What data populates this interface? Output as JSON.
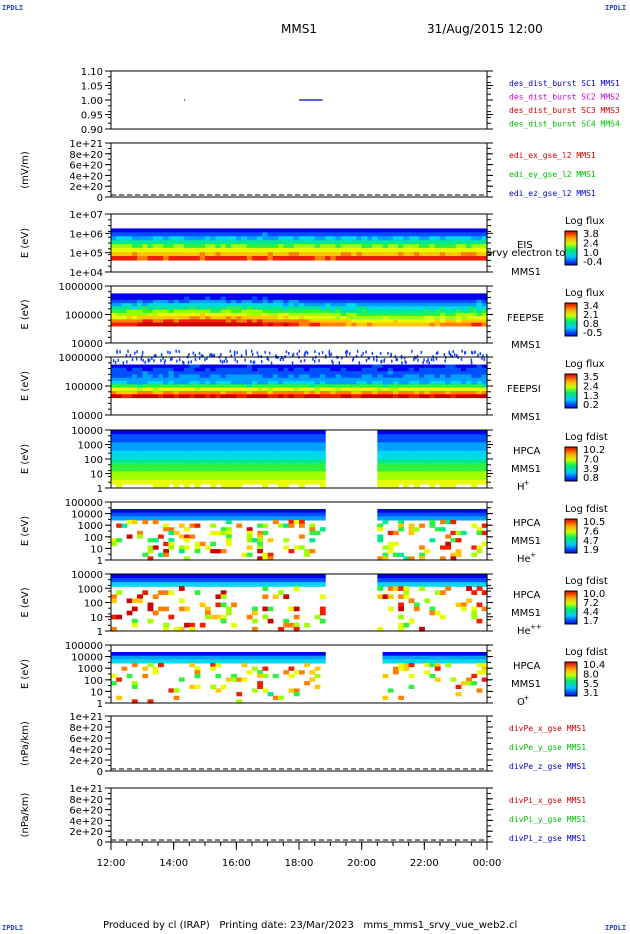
{
  "page": {
    "corner_label": "IPDLI",
    "spacecraft": "MMS1",
    "datetime": "31/Aug/2015 12:00",
    "footer": {
      "producer": "Produced by cl (IRAP)",
      "printing_date": "Printing date: 23/Mar/2023",
      "filename": "mms_mms1_srvy_vue_web2.cl"
    }
  },
  "chart_data": [
    {
      "id": "burst",
      "type": "line",
      "ylim": [
        0.9,
        1.1
      ],
      "yticks": [
        "1.10",
        "1.05",
        "1.00",
        "0.95",
        "0.90"
      ],
      "ytick_values": [
        1.1,
        1.05,
        1.0,
        0.95,
        0.9
      ],
      "ylabel": "",
      "legend": [
        {
          "text": "des_dist_burst SC1 MMS1",
          "color": "#0000cc"
        },
        {
          "text": "des_dist_burst SC2 MMS2",
          "color": "#cc00cc"
        },
        {
          "text": "des_dist_burst SC3 MMS3",
          "color": "#cc0000"
        },
        {
          "text": "des_dist_burst SC4 MMS4",
          "color": "#00bb00"
        }
      ],
      "segments": [
        {
          "x": [
            "14:20",
            "14:22"
          ],
          "y": 1.0,
          "color": "#0000cc"
        },
        {
          "x": [
            "18:00",
            "18:45"
          ],
          "y": 1.0,
          "color": "#0000cc"
        }
      ]
    },
    {
      "id": "edi",
      "type": "line",
      "ylim": [
        0,
        1e+21
      ],
      "yticks": [
        "1e+21",
        "8e+20",
        "6e+20",
        "4e+20",
        "2e+20",
        "0"
      ],
      "ytick_values": [
        1e+21,
        8e+20,
        6e+20,
        4e+20,
        2e+20,
        0
      ],
      "ylabel": "(mV/m)",
      "zero_line": true,
      "legend": [
        {
          "text": "edi_ex_gse_l2 MMS1",
          "color": "#cc0000"
        },
        {
          "text": "edi_ey_gse_l2 MMS1",
          "color": "#00bb00"
        },
        {
          "text": "edi_ez_gse_l2 MMS1",
          "color": "#0000cc"
        }
      ]
    },
    {
      "id": "eis",
      "type": "heatmap",
      "ylabel": "E (eV)",
      "yscale": "log",
      "ylim": [
        10000.0,
        10000000.0
      ],
      "yticks": [
        "1e+07",
        "1e+06",
        "1e+05",
        "1e+04"
      ],
      "ytick_values": [
        10000000.0,
        1000000.0,
        100000.0,
        10000.0
      ],
      "labels": [
        "EIS",
        "srvy electron to",
        "MMS1"
      ],
      "colorbar": {
        "title": "Log flux",
        "max": "3.8",
        "ticks": [
          "2.4",
          "1.0"
        ],
        "min": "-0.4"
      }
    },
    {
      "id": "feepse",
      "type": "heatmap",
      "ylabel": "E (eV)",
      "yscale": "log",
      "ylim": [
        10000.0,
        1000000.0
      ],
      "yticks": [
        "1000000",
        "100000",
        "10000"
      ],
      "ytick_values": [
        1000000.0,
        100000.0,
        10000.0
      ],
      "labels": [
        "FEEPSE",
        "MMS1"
      ],
      "colorbar": {
        "title": "Log flux",
        "max": "3.4",
        "ticks": [
          "2.1",
          "0.8"
        ],
        "min": "-0.5"
      }
    },
    {
      "id": "feepsi",
      "type": "heatmap",
      "ylabel": "E (eV)",
      "yscale": "log",
      "ylim": [
        10000.0,
        1000000.0
      ],
      "yticks": [
        "1000000",
        "100000",
        "10000"
      ],
      "ytick_values": [
        1000000.0,
        100000.0,
        10000.0
      ],
      "labels": [
        "FEEPSI",
        "MMS1"
      ],
      "colorbar": {
        "title": "Log flux",
        "max": "3.5",
        "ticks": [
          "2.4",
          "1.3"
        ],
        "min": "0.2"
      }
    },
    {
      "id": "hpca_h",
      "type": "heatmap",
      "ylabel": "E (eV)",
      "yscale": "log",
      "ylim": [
        1,
        10000.0
      ],
      "yticks": [
        "10000",
        "1000",
        "100",
        "10",
        "1"
      ],
      "ytick_values": [
        10000.0,
        1000.0,
        100,
        10,
        1
      ],
      "labels": [
        "HPCA",
        "MMS1",
        "H",
        "+"
      ],
      "colorbar": {
        "title": "Log fdist",
        "max": "10.2",
        "ticks": [
          "7.0",
          "3.9"
        ],
        "min": "0.8"
      }
    },
    {
      "id": "hpca_he",
      "type": "heatmap",
      "ylabel": "E (eV)",
      "yscale": "log",
      "ylim": [
        1,
        100000.0
      ],
      "yticks": [
        "100000",
        "10000",
        "1000",
        "100",
        "10",
        "1"
      ],
      "ytick_values": [
        100000.0,
        10000.0,
        1000.0,
        100,
        10,
        1
      ],
      "labels": [
        "HPCA",
        "MMS1",
        "He",
        "+"
      ],
      "colorbar": {
        "title": "Log fdist",
        "max": "10.5",
        "ticks": [
          "7.6",
          "4.7"
        ],
        "min": "1.9"
      }
    },
    {
      "id": "hpca_hepp",
      "type": "heatmap",
      "ylabel": "E (eV)",
      "yscale": "log",
      "ylim": [
        1,
        10000.0
      ],
      "yticks": [
        "10000",
        "1000",
        "100",
        "10",
        "1"
      ],
      "ytick_values": [
        10000.0,
        1000.0,
        100,
        10,
        1
      ],
      "labels": [
        "HPCA",
        "MMS1",
        "He",
        "++"
      ],
      "colorbar": {
        "title": "Log fdist",
        "max": "10.0",
        "ticks": [
          "7.2",
          "4.4"
        ],
        "min": "1.7"
      }
    },
    {
      "id": "hpca_o",
      "type": "heatmap",
      "ylabel": "E (eV)",
      "yscale": "log",
      "ylim": [
        1,
        100000.0
      ],
      "yticks": [
        "100000",
        "10000",
        "1000",
        "100",
        "10",
        "1"
      ],
      "ytick_values": [
        100000.0,
        10000.0,
        1000.0,
        100,
        10,
        1
      ],
      "labels": [
        "HPCA",
        "MMS1",
        "O",
        "+"
      ],
      "colorbar": {
        "title": "Log fdist",
        "max": "10.4",
        "ticks": [
          "8.0",
          "5.5"
        ],
        "min": "3.1"
      }
    },
    {
      "id": "divpe",
      "type": "line",
      "ylim": [
        0,
        1e+21
      ],
      "yticks": [
        "1e+21",
        "8e+20",
        "6e+20",
        "4e+20",
        "2e+20",
        "0"
      ],
      "ytick_values": [
        1e+21,
        8e+20,
        6e+20,
        4e+20,
        2e+20,
        0
      ],
      "ylabel": "(nPa/km)",
      "zero_line": true,
      "legend": [
        {
          "text": "divPe_x_gse MMS1",
          "color": "#cc0000"
        },
        {
          "text": "divPe_y_gse MMS1",
          "color": "#00bb00"
        },
        {
          "text": "divPe_z_gse MMS1",
          "color": "#0000cc"
        }
      ]
    },
    {
      "id": "divpi",
      "type": "line",
      "ylim": [
        0,
        1e+21
      ],
      "yticks": [
        "1e+21",
        "8e+20",
        "6e+20",
        "4e+20",
        "2e+20",
        "0"
      ],
      "ytick_values": [
        1e+21,
        8e+20,
        6e+20,
        4e+20,
        2e+20,
        0
      ],
      "ylabel": "(nPa/km)",
      "zero_line": true,
      "legend": [
        {
          "text": "divPi_x_gse MMS1",
          "color": "#cc0000"
        },
        {
          "text": "divPi_y_gse MMS1",
          "color": "#00bb00"
        },
        {
          "text": "divPi_z_gse MMS1",
          "color": "#0000cc"
        }
      ]
    }
  ],
  "x_axis": {
    "xlim": [
      "12:00",
      "00:00"
    ],
    "ticks": [
      "12:00",
      "14:00",
      "16:00",
      "18:00",
      "20:00",
      "22:00",
      "00:00"
    ],
    "hpca_data_gap": [
      "18:45",
      "20:30"
    ],
    "hpca_o_data_gap": [
      "18:45",
      "20:45"
    ]
  }
}
